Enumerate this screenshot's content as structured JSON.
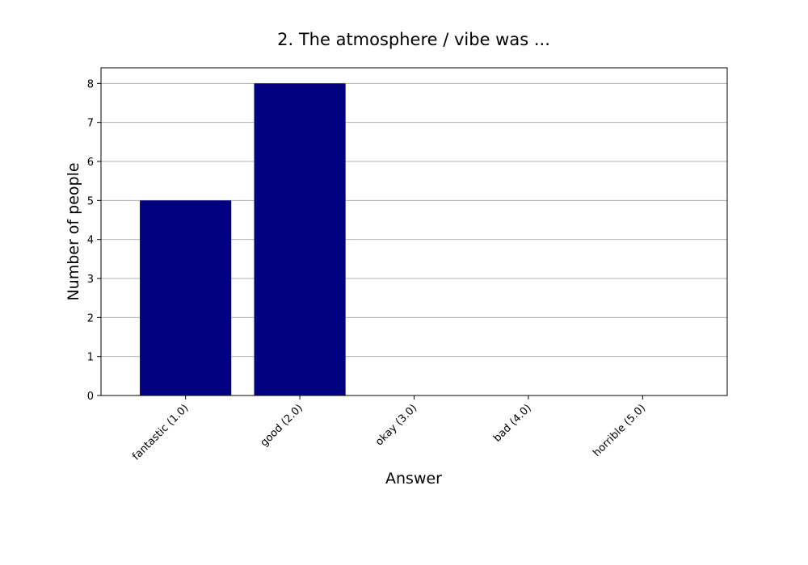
{
  "chart_data": {
    "type": "bar",
    "title": "2. The atmosphere / vibe was ...",
    "xlabel": "Answer",
    "ylabel": "Number of people",
    "categories": [
      "fantastic (1.0)",
      "good (2.0)",
      "okay (3.0)",
      "bad (4.0)",
      "horrible (5.0)"
    ],
    "values": [
      5,
      8,
      0,
      0,
      0
    ],
    "ylim": [
      0,
      8.4
    ],
    "yticks": [
      "0",
      "1",
      "2",
      "3",
      "4",
      "5",
      "6",
      "7",
      "8"
    ],
    "grid": true,
    "bar_color": "#000080",
    "grid_color": "#b0b0b0"
  }
}
